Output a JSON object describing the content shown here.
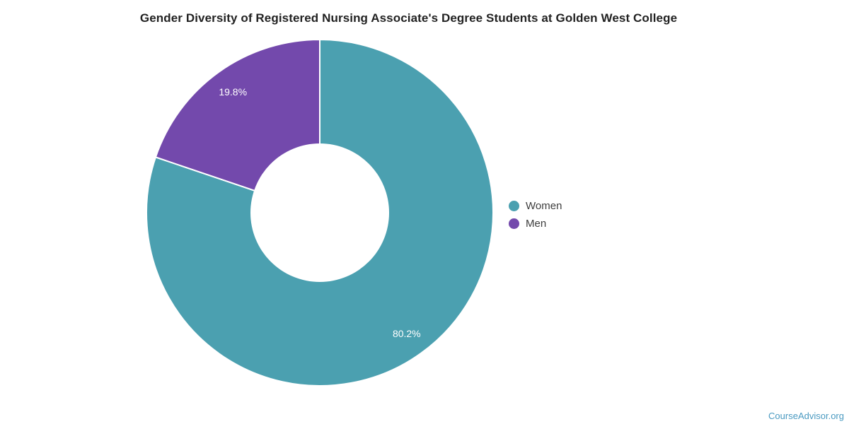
{
  "chart_data": {
    "type": "pie",
    "title": "Gender Diversity of Registered Nursing Associate's Degree Students at Golden West College",
    "labels": [
      "Women",
      "Men"
    ],
    "values": [
      80.2,
      19.8
    ],
    "value_labels": [
      "80.2%",
      "19.8%"
    ],
    "colors": [
      "#4BA0B0",
      "#7349AC"
    ],
    "donut": true,
    "inner_radius_ratio": 0.4,
    "start_angle_deg": 0,
    "direction": "clockwise",
    "slice_label_color": "#ffffff",
    "legend_position": "right",
    "legend": {
      "items": [
        {
          "label": "Women",
          "color": "#4BA0B0"
        },
        {
          "label": "Men",
          "color": "#7349AC"
        }
      ]
    }
  },
  "footer": {
    "attribution": "CourseAdvisor.org",
    "link_color": "#4A9AC1"
  }
}
